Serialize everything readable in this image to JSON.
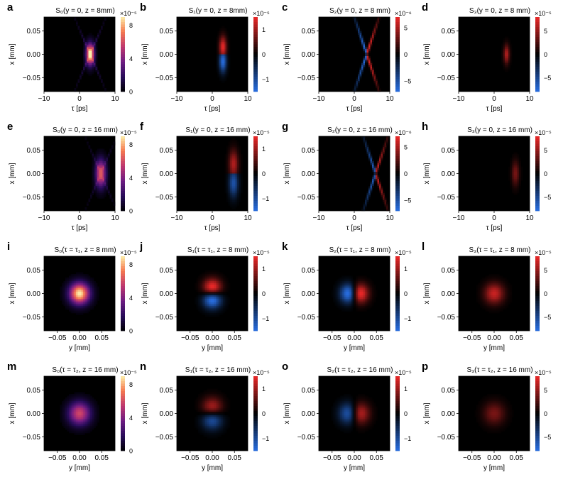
{
  "chart_data": [
    {
      "letter": "a",
      "title": "S₀(y = 0, z = 8mm)",
      "type": "heatmap",
      "stokes": "S0",
      "plane": "x-tau",
      "pattern": "s0_tau",
      "center": 3,
      "width": 1.0,
      "strength": 1.0,
      "xlabel": "τ [ps]",
      "ylabel": "x [mm]",
      "xlim": [
        -10,
        10
      ],
      "ylim": [
        -0.08,
        0.08
      ],
      "xticks": [
        "−10",
        "0",
        "10"
      ],
      "yticks": [
        "0.05",
        "0.00",
        "−0.05"
      ],
      "colorbar": {
        "scale": "×10⁻⁵",
        "ticks": [
          "8",
          "4",
          "0"
        ],
        "map": "magma",
        "range": [
          0,
          9
        ]
      }
    },
    {
      "letter": "b",
      "title": "S₁(y = 0, z = 8mm)",
      "type": "heatmap",
      "stokes": "S1",
      "plane": "x-tau",
      "pattern": "s1_tau",
      "center": 3,
      "width": 1.0,
      "strength": 1.0,
      "xlabel": "τ [ps]",
      "ylabel": "x [mm]",
      "xlim": [
        -10,
        10
      ],
      "ylim": [
        -0.08,
        0.08
      ],
      "xticks": [
        "−10",
        "0",
        "10"
      ],
      "yticks": [
        "0.05",
        "0.00",
        "−0.05"
      ],
      "colorbar": {
        "scale": "×10⁻⁵",
        "ticks": [
          "1",
          "0",
          "−1"
        ],
        "map": "diverging",
        "range": [
          -1.5,
          1.5
        ]
      }
    },
    {
      "letter": "c",
      "title": "S₂(y = 0, z = 8 mm)",
      "type": "heatmap",
      "stokes": "S2",
      "plane": "x-tau",
      "pattern": "s2_tau",
      "center": 3.5,
      "width": 1.0,
      "strength": 1.0,
      "xlabel": "τ [ps]",
      "ylabel": "x [mm]",
      "xlim": [
        -10,
        10
      ],
      "ylim": [
        -0.08,
        0.08
      ],
      "xticks": [
        "−10",
        "0",
        "10"
      ],
      "yticks": [
        "0.05",
        "0.00",
        "−0.05"
      ],
      "colorbar": {
        "scale": "×10⁻⁶",
        "ticks": [
          "5",
          "0",
          "−5"
        ],
        "map": "diverging",
        "range": [
          -7,
          7
        ]
      }
    },
    {
      "letter": "d",
      "title": "S₃(y = 0, z = 8 mm)",
      "type": "heatmap",
      "stokes": "S3",
      "plane": "x-tau",
      "pattern": "s3_tau",
      "center": 3.5,
      "width": 1.0,
      "strength": 0.9,
      "xlabel": "τ [ps]",
      "ylabel": "x [mm]",
      "xlim": [
        -10,
        10
      ],
      "ylim": [
        -0.08,
        0.08
      ],
      "xticks": [
        "−10",
        "0",
        "10"
      ],
      "yticks": [
        "0.05",
        "0.00",
        "−0.05"
      ],
      "colorbar": {
        "scale": "×10⁻⁵",
        "ticks": [
          "5",
          "0",
          "−5"
        ],
        "map": "diverging",
        "range": [
          -8,
          8
        ]
      }
    },
    {
      "letter": "e",
      "title": "S₀(y = 0, z = 16 mm)",
      "type": "heatmap",
      "stokes": "S0",
      "plane": "x-tau",
      "pattern": "s0_tau",
      "center": 6,
      "width": 1.3,
      "strength": 0.7,
      "xlabel": "τ [ps]",
      "ylabel": "x [mm]",
      "xlim": [
        -10,
        10
      ],
      "ylim": [
        -0.08,
        0.08
      ],
      "xticks": [
        "−10",
        "0",
        "10"
      ],
      "yticks": [
        "0.05",
        "0.00",
        "−0.05"
      ],
      "colorbar": {
        "scale": "×10⁻⁵",
        "ticks": [
          "8",
          "4",
          "0"
        ],
        "map": "magma",
        "range": [
          0,
          9
        ]
      }
    },
    {
      "letter": "f",
      "title": "S₁(y = 0, z = 16 mm)",
      "type": "heatmap",
      "stokes": "S1",
      "plane": "x-tau",
      "pattern": "s1_tau",
      "center": 6,
      "width": 1.3,
      "strength": 0.75,
      "xlabel": "τ [ps]",
      "ylabel": "x [mm]",
      "xlim": [
        -10,
        10
      ],
      "ylim": [
        -0.08,
        0.08
      ],
      "xticks": [
        "−10",
        "0",
        "10"
      ],
      "yticks": [
        "0.05",
        "0.00",
        "−0.05"
      ],
      "colorbar": {
        "scale": "×10⁻⁵",
        "ticks": [
          "1",
          "0",
          "−1"
        ],
        "map": "diverging",
        "range": [
          -1.5,
          1.5
        ]
      }
    },
    {
      "letter": "g",
      "title": "S₂(y = 0, z = 16 mm)",
      "type": "heatmap",
      "stokes": "S2",
      "plane": "x-tau",
      "pattern": "s2_tau",
      "center": 6,
      "width": 1.3,
      "strength": 0.85,
      "xlabel": "τ [ps]",
      "ylabel": "x [mm]",
      "xlim": [
        -10,
        10
      ],
      "ylim": [
        -0.08,
        0.08
      ],
      "xticks": [
        "−10",
        "0",
        "10"
      ],
      "yticks": [
        "0.05",
        "0.00",
        "−0.05"
      ],
      "colorbar": {
        "scale": "×10⁻⁶",
        "ticks": [
          "5",
          "0",
          "−5"
        ],
        "map": "diverging",
        "range": [
          -7,
          7
        ]
      }
    },
    {
      "letter": "h",
      "title": "S₃(y = 0, z = 16 mm)",
      "type": "heatmap",
      "stokes": "S3",
      "plane": "x-tau",
      "pattern": "s3_tau",
      "center": 6,
      "width": 1.3,
      "strength": 0.6,
      "xlabel": "τ [ps]",
      "ylabel": "x [mm]",
      "xlim": [
        -10,
        10
      ],
      "ylim": [
        -0.08,
        0.08
      ],
      "xticks": [
        "−10",
        "0",
        "10"
      ],
      "yticks": [
        "0.05",
        "0.00",
        "−0.05"
      ],
      "colorbar": {
        "scale": "×10⁻⁵",
        "ticks": [
          "5",
          "0",
          "−5"
        ],
        "map": "diverging",
        "range": [
          -8,
          8
        ]
      }
    },
    {
      "letter": "i",
      "title": "S₀(τ = τ₁, z = 8 mm)",
      "type": "heatmap",
      "stokes": "S0",
      "plane": "x-y",
      "pattern": "s0_xy",
      "center": 0,
      "width": 1.0,
      "strength": 1.0,
      "xlabel": "y [mm]",
      "ylabel": "x [mm]",
      "xlim": [
        -0.08,
        0.08
      ],
      "ylim": [
        -0.08,
        0.08
      ],
      "xticks": [
        "−0.05",
        "0.00",
        "0.05"
      ],
      "yticks": [
        "0.05",
        "0.00",
        "−0.05"
      ],
      "colorbar": {
        "scale": "×10⁻⁵",
        "ticks": [
          "8",
          "4",
          "0"
        ],
        "map": "magma",
        "range": [
          0,
          9
        ]
      }
    },
    {
      "letter": "j",
      "title": "S₁(τ = τ₁, z = 8 mm)",
      "type": "heatmap",
      "stokes": "S1",
      "plane": "x-y",
      "pattern": "s1_xy",
      "center": 0,
      "width": 1.0,
      "strength": 1.0,
      "xlabel": "y [mm]",
      "ylabel": "x [mm]",
      "xlim": [
        -0.08,
        0.08
      ],
      "ylim": [
        -0.08,
        0.08
      ],
      "xticks": [
        "−0.05",
        "0.00",
        "0.05"
      ],
      "yticks": [
        "0.05",
        "0.00",
        "−0.05"
      ],
      "colorbar": {
        "scale": "×10⁻⁵",
        "ticks": [
          "1",
          "0",
          "−1"
        ],
        "map": "diverging",
        "range": [
          -1.5,
          1.5
        ]
      }
    },
    {
      "letter": "k",
      "title": "S₂(τ = τ₁, z = 8 mm)",
      "type": "heatmap",
      "stokes": "S2",
      "plane": "x-y",
      "pattern": "s2_xy",
      "center": 0,
      "width": 1.0,
      "strength": 1.0,
      "xlabel": "y [mm]",
      "ylabel": "x [mm]",
      "xlim": [
        -0.08,
        0.08
      ],
      "ylim": [
        -0.08,
        0.08
      ],
      "xticks": [
        "−0.05",
        "0.00",
        "0.05"
      ],
      "yticks": [
        "0.05",
        "0.00",
        "−0.05"
      ],
      "colorbar": {
        "scale": "×10⁻⁵",
        "ticks": [
          "1",
          "0",
          "−1"
        ],
        "map": "diverging",
        "range": [
          -1.5,
          1.5
        ]
      }
    },
    {
      "letter": "l",
      "title": "S₃(τ = τ₁, z = 8 mm)",
      "type": "heatmap",
      "stokes": "S3",
      "plane": "x-y",
      "pattern": "s3_xy",
      "center": 0,
      "width": 1.0,
      "strength": 1.0,
      "xlabel": "y [mm]",
      "ylabel": "x [mm]",
      "xlim": [
        -0.08,
        0.08
      ],
      "ylim": [
        -0.08,
        0.08
      ],
      "xticks": [
        "−0.05",
        "0.00",
        "0.05"
      ],
      "yticks": [
        "0.05",
        "0.00",
        "−0.05"
      ],
      "colorbar": {
        "scale": "×10⁻⁵",
        "ticks": [
          "5",
          "0",
          "−5"
        ],
        "map": "diverging",
        "range": [
          -8,
          8
        ]
      }
    },
    {
      "letter": "m",
      "title": "S₀(τ = τ₂, z = 16 mm)",
      "type": "heatmap",
      "stokes": "S0",
      "plane": "x-y",
      "pattern": "s0_xy",
      "center": 0,
      "width": 1.1,
      "strength": 0.65,
      "xlabel": "y [mm]",
      "ylabel": "x [mm]",
      "xlim": [
        -0.08,
        0.08
      ],
      "ylim": [
        -0.08,
        0.08
      ],
      "xticks": [
        "−0.05",
        "0.00",
        "0.05"
      ],
      "yticks": [
        "0.05",
        "0.00",
        "−0.05"
      ],
      "colorbar": {
        "scale": "×10⁻⁵",
        "ticks": [
          "8",
          "4",
          "0"
        ],
        "map": "magma",
        "range": [
          0,
          9
        ]
      }
    },
    {
      "letter": "n",
      "title": "S₁(τ = τ₂, z = 16 mm)",
      "type": "heatmap",
      "stokes": "S1",
      "plane": "x-y",
      "pattern": "s1_xy",
      "center": 0,
      "width": 1.1,
      "strength": 0.7,
      "xlabel": "y [mm]",
      "ylabel": "x [mm]",
      "xlim": [
        -0.08,
        0.08
      ],
      "ylim": [
        -0.08,
        0.08
      ],
      "xticks": [
        "−0.05",
        "0.00",
        "0.05"
      ],
      "yticks": [
        "0.05",
        "0.00",
        "−0.05"
      ],
      "colorbar": {
        "scale": "×10⁻⁵",
        "ticks": [
          "1",
          "0",
          "−1"
        ],
        "map": "diverging",
        "range": [
          -1.5,
          1.5
        ]
      }
    },
    {
      "letter": "o",
      "title": "S₂(τ = τ₂, z = 16 mm)",
      "type": "heatmap",
      "stokes": "S2",
      "plane": "x-y",
      "pattern": "s2_xy",
      "center": 0,
      "width": 1.1,
      "strength": 0.75,
      "xlabel": "y [mm]",
      "ylabel": "x [mm]",
      "xlim": [
        -0.08,
        0.08
      ],
      "ylim": [
        -0.08,
        0.08
      ],
      "xticks": [
        "−0.05",
        "0.00",
        "0.05"
      ],
      "yticks": [
        "0.05",
        "0.00",
        "−0.05"
      ],
      "colorbar": {
        "scale": "×10⁻⁵",
        "ticks": [
          "1",
          "0",
          "−1"
        ],
        "map": "diverging",
        "range": [
          -1.5,
          1.5
        ]
      }
    },
    {
      "letter": "p",
      "title": "S₃(τ = τ₂, z = 16 mm)",
      "type": "heatmap",
      "stokes": "S3",
      "plane": "x-y",
      "pattern": "s3_xy",
      "center": 0,
      "width": 1.1,
      "strength": 0.6,
      "xlabel": "y [mm]",
      "ylabel": "x [mm]",
      "xlim": [
        -0.08,
        0.08
      ],
      "ylim": [
        -0.08,
        0.08
      ],
      "xticks": [
        "−0.05",
        "0.00",
        "0.05"
      ],
      "yticks": [
        "0.05",
        "0.00",
        "−0.05"
      ],
      "colorbar": {
        "scale": "×10⁻⁵",
        "ticks": [
          "5",
          "0",
          "−5"
        ],
        "map": "diverging",
        "range": [
          -8,
          8
        ]
      }
    }
  ]
}
